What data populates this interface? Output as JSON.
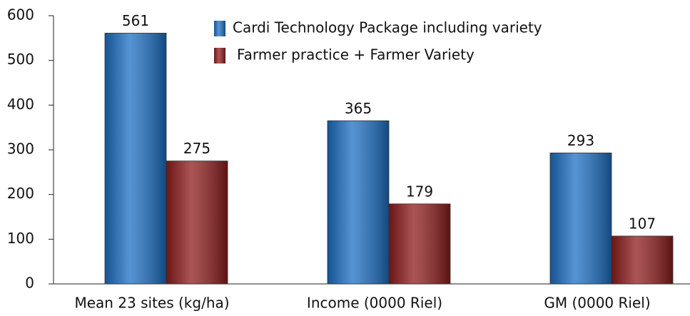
{
  "chart_data": {
    "type": "bar",
    "categories": [
      "Mean 23 sites (kg/ha)",
      "Income (0000 Riel)",
      "GM (0000 Riel)"
    ],
    "series": [
      {
        "name": "Cardi Technology Package including variety",
        "color": "#1c6fc4",
        "values": [
          561,
          365,
          293
        ]
      },
      {
        "name": "Farmer practice + Farmer Variety",
        "color": "#8e1c1c",
        "values": [
          275,
          179,
          107
        ]
      }
    ],
    "ylim": [
      0,
      600
    ],
    "yticks": [
      0,
      100,
      200,
      300,
      400,
      500,
      600
    ],
    "grid": false
  }
}
